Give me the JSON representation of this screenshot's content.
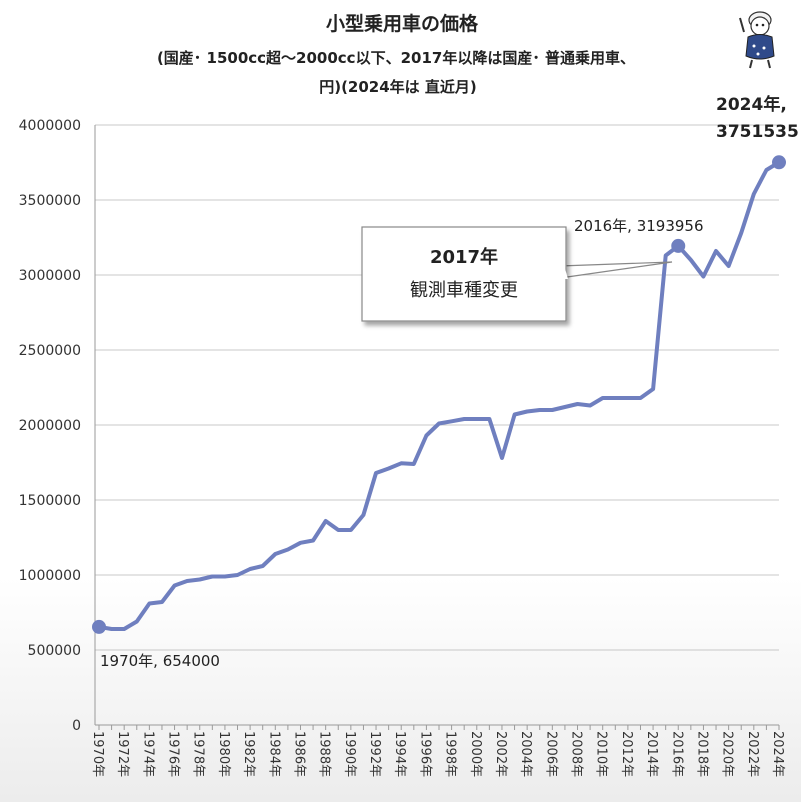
{
  "chart_data": {
    "type": "line",
    "title": "小型乗用車の価格",
    "subtitle_line1": "(国産･ 1500cc超～2000cc以下、2017年以降は国産･ 普通乗用車、",
    "subtitle_line2": "円)(2024年は 直近月)",
    "x": [
      1970,
      1971,
      1972,
      1973,
      1974,
      1975,
      1976,
      1977,
      1978,
      1979,
      1980,
      1981,
      1982,
      1983,
      1984,
      1985,
      1986,
      1987,
      1988,
      1989,
      1990,
      1991,
      1992,
      1993,
      1994,
      1995,
      1996,
      1997,
      1998,
      1999,
      2000,
      2001,
      2002,
      2003,
      2004,
      2005,
      2006,
      2007,
      2008,
      2009,
      2010,
      2011,
      2012,
      2013,
      2014,
      2015,
      2016,
      2017,
      2018,
      2019,
      2020,
      2021,
      2022,
      2023,
      2024
    ],
    "x_tick_labels": [
      "1970年",
      "1972年",
      "1974年",
      "1976年",
      "1978年",
      "1980年",
      "1982年",
      "1984年",
      "1986年",
      "1988年",
      "1990年",
      "1992年",
      "1994年",
      "1996年",
      "1998年",
      "2000年",
      "2002年",
      "2004年",
      "2006年",
      "2008年",
      "2010年",
      "2012年",
      "2014年",
      "2016年",
      "2018年",
      "2020年",
      "2022年",
      "2024年"
    ],
    "series": [
      {
        "color": "#6f7fbf",
        "values": [
          654000,
          640000,
          640000,
          690000,
          810000,
          820000,
          930000,
          960000,
          970000,
          990000,
          990000,
          1000000,
          1040000,
          1060000,
          1140000,
          1170000,
          1215000,
          1230000,
          1360000,
          1300000,
          1300000,
          1400000,
          1680000,
          1710000,
          1745000,
          1740000,
          1930000,
          2010000,
          2025000,
          2040000,
          2040000,
          2040000,
          1780000,
          2070000,
          2090000,
          2100000,
          2100000,
          2120000,
          2140000,
          2130000,
          2180000,
          2180000,
          2180000,
          2180000,
          2240000,
          3130000,
          3193956,
          3100000,
          2990000,
          3160000,
          3060000,
          3280000,
          3540000,
          3700000,
          3751535
        ]
      }
    ],
    "ylim": [
      0,
      4000000
    ],
    "y_ticks": [
      "0",
      "500000",
      "1000000",
      "1500000",
      "2000000",
      "2500000",
      "3000000",
      "3500000",
      "4000000"
    ],
    "grid": true,
    "annotations": {
      "start": "1970年, 654000",
      "peak2016": "2016年, 3193956",
      "end_line1": "2024年,",
      "end_line2": "3751535",
      "callout_line1": "2017年",
      "callout_line2": "観測車種変更"
    },
    "mascot_icon": "mascot-character-icon"
  }
}
